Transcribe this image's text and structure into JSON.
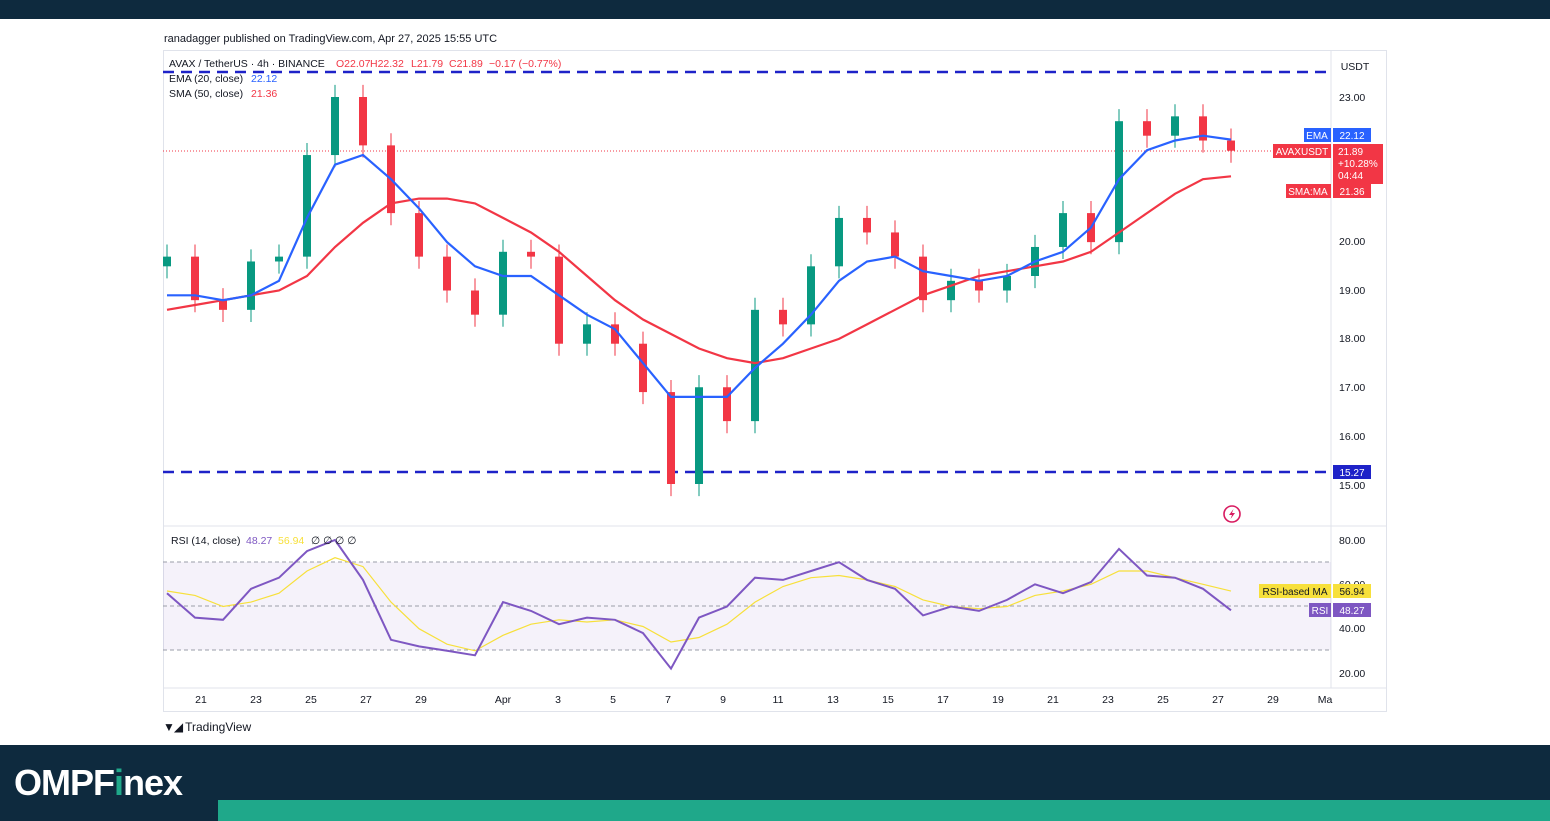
{
  "publisher_line": "ranadagger published on TradingView.com, Apr 27, 2025 15:55 UTC",
  "branding": {
    "name_part1": "OMPF",
    "name_dot": "i",
    "name_part2": "nex",
    "tv_logo": "TradingView"
  },
  "colors": {
    "up": "#089981",
    "down": "#f23645",
    "ema": "#2962ff",
    "sma": "#f23645",
    "rsi": "#7e57c2",
    "rsi_ma": "#f7e03b",
    "level": "#1e22c8",
    "brand_accent": "#1fa88a"
  },
  "legend": {
    "symbol": "AVAX / TetherUS · 4h · BINANCE",
    "o": "O22.07",
    "h": "H22.32",
    "l": "L21.79",
    "c": "C21.89",
    "chg": "−0.17 (−0.77%)",
    "ema_label": "EMA (20, close)",
    "ema_value": "22.12",
    "sma_label": "SMA (50, close)",
    "sma_value": "21.36",
    "rsi_label": "RSI (14, close)",
    "rsi_value": "48.27",
    "rsi_ma_value": "56.94",
    "rsi_extra": "∅ ∅ ∅ ∅"
  },
  "price_axis": {
    "currency": "USDT",
    "ticks": [
      "23.00",
      "20.00",
      "19.00",
      "18.00",
      "17.00",
      "16.00",
      "15.00"
    ],
    "tags": {
      "ema": {
        "label": "EMA",
        "value": "22.12"
      },
      "last": {
        "label": "AVAXUSDT",
        "value": "21.89",
        "change": "+10.28%",
        "countdown": "04:44"
      },
      "sma": {
        "label": "SMA:MA",
        "value": "21.36"
      },
      "support": {
        "value": "15.27"
      }
    }
  },
  "rsi_axis": {
    "ticks": [
      "80.00",
      "60.00",
      "40.00",
      "20.00"
    ],
    "tags": {
      "rsi_ma": {
        "label": "RSI-based MA",
        "value": "56.94"
      },
      "rsi": {
        "label": "RSI",
        "value": "48.27"
      }
    }
  },
  "time_axis": [
    "21",
    "23",
    "25",
    "27",
    "29",
    "Apr",
    "3",
    "5",
    "7",
    "9",
    "11",
    "13",
    "15",
    "17",
    "19",
    "21",
    "23",
    "25",
    "27",
    "29",
    "Ma"
  ],
  "chart_data": {
    "type": "line",
    "title": "AVAX / TetherUS · 4h · BINANCE",
    "ylim": [
      14.7,
      23.5
    ],
    "levels": [
      23.5,
      15.27
    ],
    "x": [
      "Mar 20",
      "Mar 21",
      "Mar 22",
      "Mar 23",
      "Mar 24",
      "Mar 25",
      "Mar 26",
      "Mar 27",
      "Mar 28",
      "Mar 29",
      "Mar 30",
      "Mar 31",
      "Apr 1",
      "Apr 2",
      "Apr 3",
      "Apr 4",
      "Apr 5",
      "Apr 6",
      "Apr 7",
      "Apr 8",
      "Apr 9",
      "Apr 10",
      "Apr 11",
      "Apr 12",
      "Apr 13",
      "Apr 14",
      "Apr 15",
      "Apr 16",
      "Apr 17",
      "Apr 18",
      "Apr 19",
      "Apr 20",
      "Apr 21",
      "Apr 22",
      "Apr 23",
      "Apr 24",
      "Apr 25",
      "Apr 26",
      "Apr 27"
    ],
    "series": [
      {
        "name": "AVAXUSDT",
        "values": [
          19.7,
          18.8,
          18.6,
          19.6,
          19.7,
          21.8,
          23.0,
          22.0,
          20.6,
          19.7,
          19.0,
          18.5,
          19.8,
          19.7,
          17.9,
          18.3,
          17.9,
          16.9,
          15.0,
          17.0,
          16.3,
          18.6,
          18.3,
          19.5,
          20.5,
          20.2,
          19.7,
          18.8,
          19.2,
          19.0,
          19.3,
          19.9,
          20.6,
          20.0,
          22.5,
          22.2,
          22.6,
          22.1,
          21.89
        ]
      },
      {
        "name": "EMA (20, close)",
        "values": [
          18.9,
          18.9,
          18.8,
          18.9,
          19.2,
          20.5,
          21.6,
          21.8,
          21.3,
          20.7,
          20.0,
          19.5,
          19.3,
          19.3,
          18.9,
          18.5,
          18.2,
          17.5,
          16.8,
          16.8,
          16.8,
          17.4,
          17.9,
          18.5,
          19.2,
          19.6,
          19.7,
          19.4,
          19.3,
          19.2,
          19.3,
          19.6,
          19.8,
          20.3,
          21.3,
          21.9,
          22.1,
          22.2,
          22.12
        ]
      },
      {
        "name": "SMA (50, close)",
        "values": [
          18.6,
          18.7,
          18.8,
          18.9,
          19.0,
          19.3,
          19.9,
          20.4,
          20.8,
          20.9,
          20.9,
          20.8,
          20.5,
          20.2,
          19.8,
          19.3,
          18.8,
          18.4,
          18.1,
          17.8,
          17.6,
          17.5,
          17.6,
          17.8,
          18.0,
          18.3,
          18.6,
          18.9,
          19.1,
          19.3,
          19.4,
          19.5,
          19.6,
          19.8,
          20.2,
          20.6,
          21.0,
          21.3,
          21.36
        ]
      },
      {
        "name": "RSI (14, close)",
        "values": [
          56,
          45,
          44,
          58,
          63,
          75,
          80,
          62,
          35,
          32,
          30,
          28,
          52,
          48,
          42,
          45,
          44,
          38,
          22,
          45,
          50,
          63,
          62,
          66,
          70,
          62,
          58,
          46,
          50,
          48,
          53,
          60,
          56,
          61,
          76,
          64,
          63,
          58,
          48.27
        ]
      },
      {
        "name": "RSI-based MA",
        "values": [
          57,
          55,
          50,
          52,
          56,
          66,
          72,
          68,
          52,
          40,
          33,
          30,
          37,
          42,
          44,
          43,
          44,
          41,
          34,
          36,
          42,
          52,
          59,
          63,
          64,
          62,
          59,
          53,
          50,
          49,
          50,
          55,
          57,
          60,
          66,
          66,
          63,
          60,
          56.94
        ]
      }
    ],
    "rsi_levels": [
      70,
      50,
      30
    ]
  }
}
